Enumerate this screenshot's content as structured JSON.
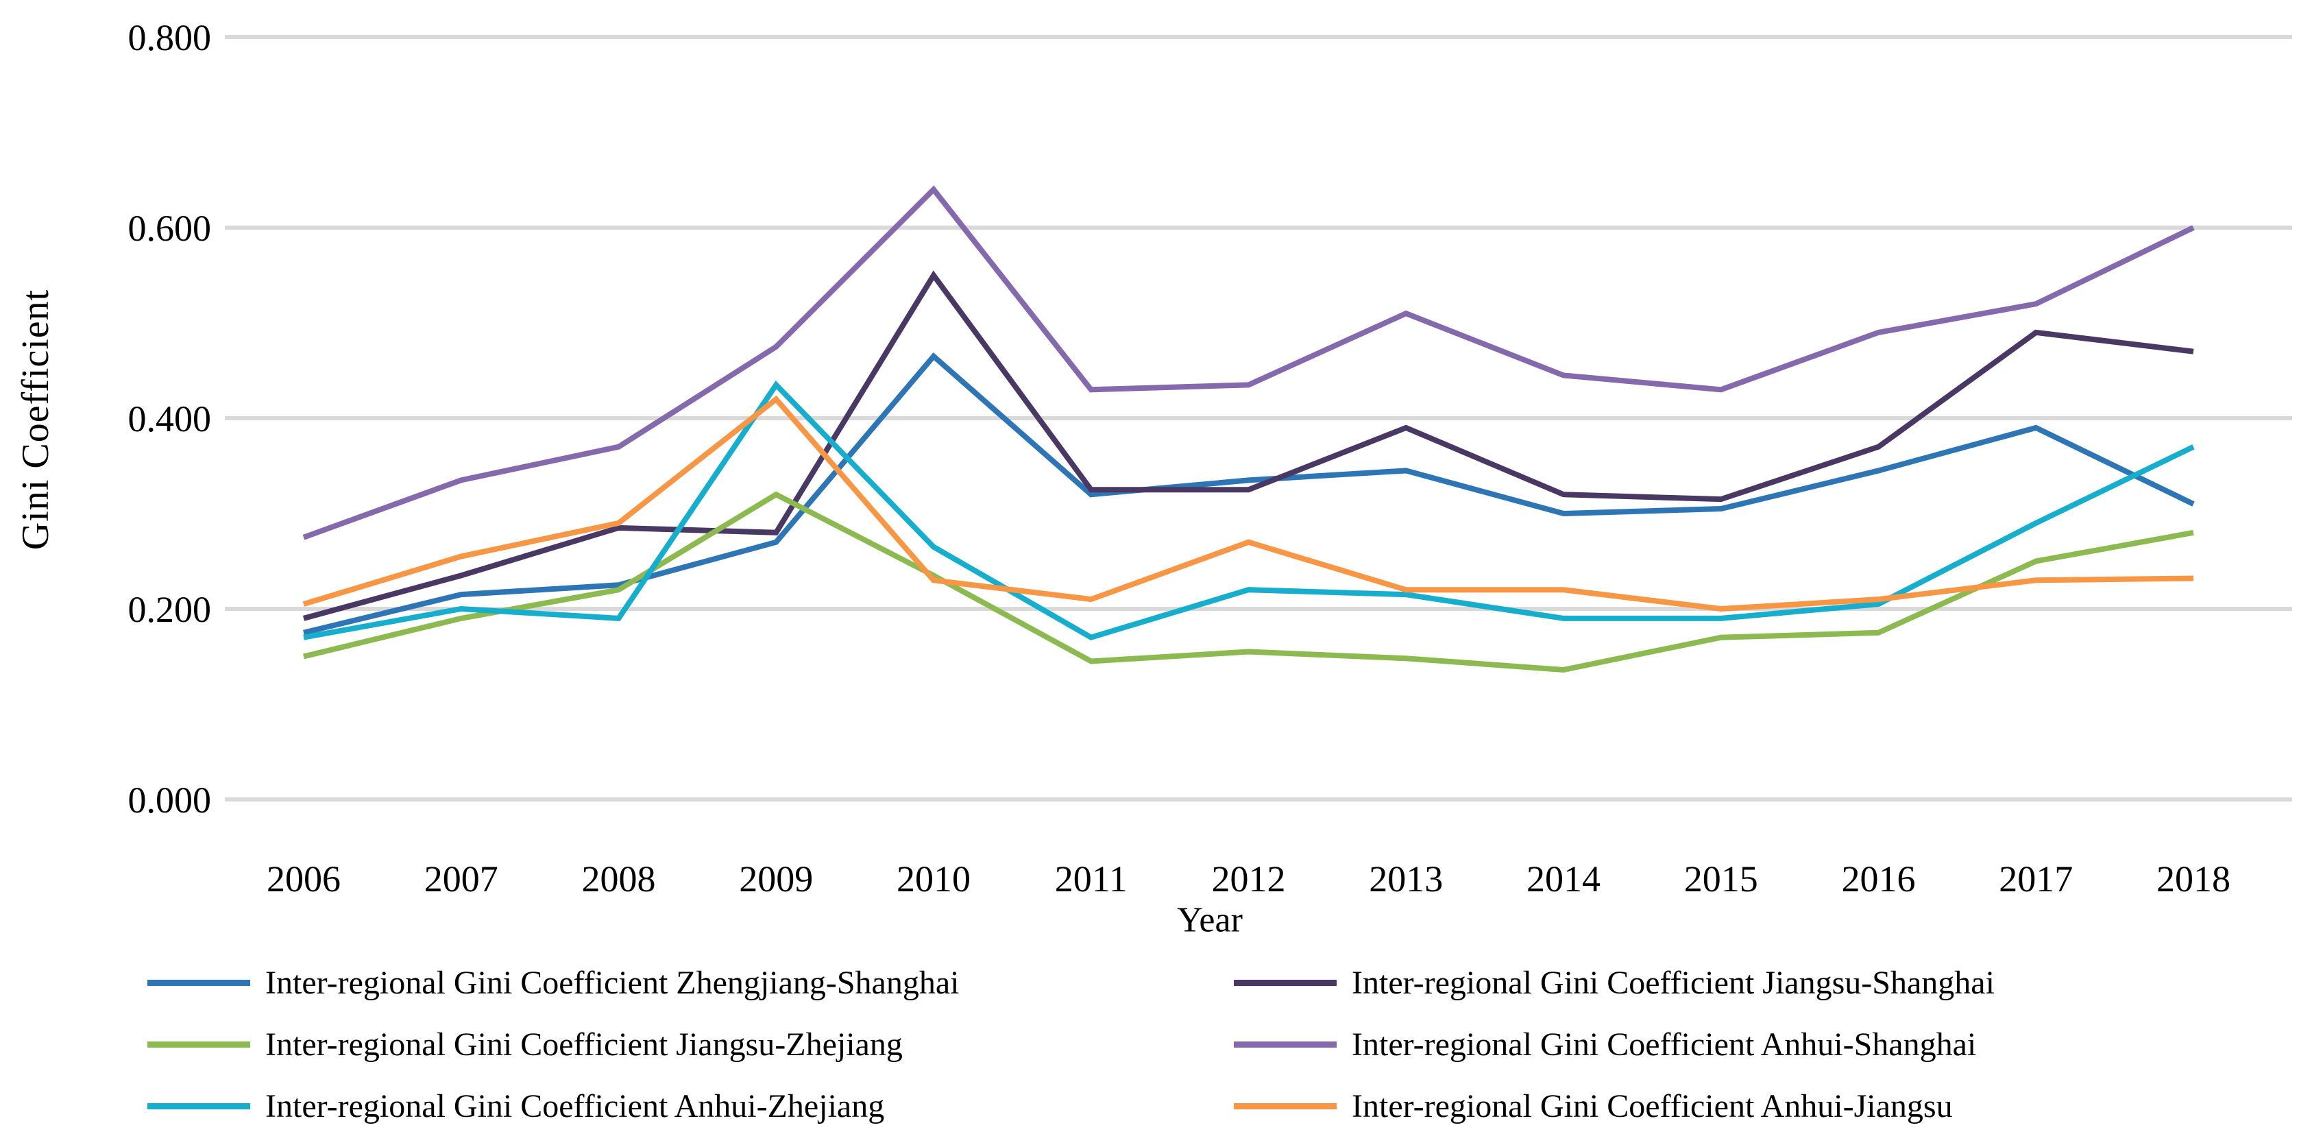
{
  "chart_data": {
    "type": "line",
    "title": "",
    "xlabel": "Year",
    "ylabel": "Gini Coefficient",
    "x": [
      2006,
      2007,
      2008,
      2009,
      2010,
      2011,
      2012,
      2013,
      2014,
      2015,
      2016,
      2017,
      2018
    ],
    "yticks": [
      "0.000",
      "0.200",
      "0.400",
      "0.600",
      "0.800"
    ],
    "ylim": [
      0.0,
      0.8
    ],
    "grid": true,
    "gridline_color": "#D9D9D9",
    "legend_position": "bottom",
    "legend_columns": [
      [
        0,
        2,
        4
      ],
      [
        1,
        3,
        5
      ]
    ],
    "series": [
      {
        "name": "Inter-regional Gini Coefficient Zhengjiang-Shanghai",
        "color": "#2E75B6",
        "values": [
          0.175,
          0.215,
          0.225,
          0.27,
          0.465,
          0.32,
          0.335,
          0.345,
          0.3,
          0.305,
          0.345,
          0.39,
          0.31
        ]
      },
      {
        "name": "Inter-regional Gini Coefficient Jiangsu-Shanghai",
        "color": "#4A3864",
        "values": [
          0.19,
          0.235,
          0.285,
          0.28,
          0.55,
          0.325,
          0.325,
          0.39,
          0.32,
          0.315,
          0.37,
          0.49,
          0.47
        ]
      },
      {
        "name": "Inter-regional Gini Coefficient Jiangsu-Zhejiang",
        "color": "#8CBA50",
        "values": [
          0.15,
          0.19,
          0.22,
          0.32,
          0.235,
          0.145,
          0.155,
          0.148,
          0.136,
          0.17,
          0.175,
          0.25,
          0.28
        ]
      },
      {
        "name": "Inter-regional Gini Coefficient Anhui-Shanghai",
        "color": "#8569AD",
        "values": [
          0.275,
          0.335,
          0.37,
          0.475,
          0.64,
          0.43,
          0.435,
          0.51,
          0.445,
          0.43,
          0.49,
          0.52,
          0.6
        ]
      },
      {
        "name": "Inter-regional Gini Coefficient Anhui-Zhejiang",
        "color": "#17AECE",
        "values": [
          0.17,
          0.2,
          0.19,
          0.435,
          0.265,
          0.17,
          0.22,
          0.215,
          0.19,
          0.19,
          0.205,
          0.29,
          0.37
        ]
      },
      {
        "name": "Inter-regional Gini Coefficient Anhui-Jiangsu",
        "color": "#F79746",
        "values": [
          0.205,
          0.255,
          0.29,
          0.42,
          0.23,
          0.21,
          0.27,
          0.22,
          0.22,
          0.2,
          0.21,
          0.23,
          0.232
        ]
      }
    ]
  }
}
